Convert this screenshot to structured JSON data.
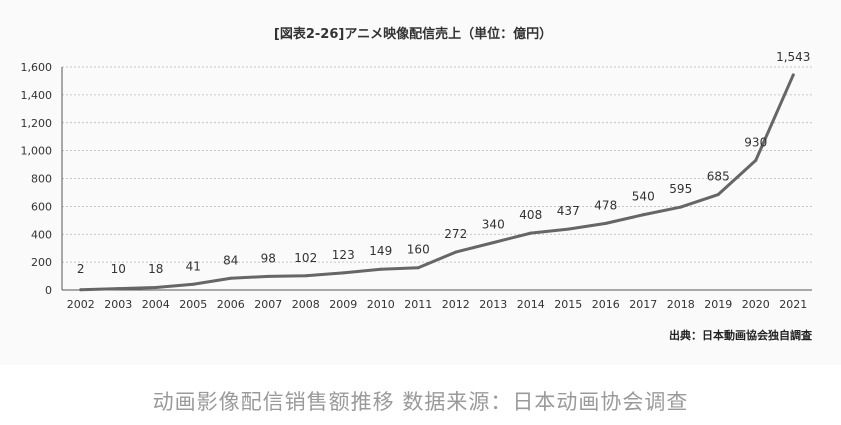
{
  "chart_data": {
    "type": "line",
    "title": "[図表2-26]アニメ映像配信売上（単位：億円）",
    "categories": [
      "2002",
      "2003",
      "2004",
      "2005",
      "2006",
      "2007",
      "2008",
      "2009",
      "2010",
      "2011",
      "2012",
      "2013",
      "2014",
      "2015",
      "2016",
      "2017",
      "2018",
      "2019",
      "2020",
      "2021"
    ],
    "values": [
      2,
      10,
      18,
      41,
      84,
      98,
      102,
      123,
      149,
      160,
      272,
      340,
      408,
      437,
      478,
      540,
      595,
      685,
      930,
      1543
    ],
    "data_labels": [
      "2",
      "10",
      "18",
      "41",
      "84",
      "98",
      "102",
      "123",
      "149",
      "160",
      "272",
      "340",
      "408",
      "437",
      "478",
      "540",
      "595",
      "685",
      "930",
      "1,543"
    ],
    "ylim": [
      0,
      1600
    ],
    "yticks": [
      0,
      200,
      400,
      600,
      800,
      1000,
      1200,
      1400,
      1600
    ],
    "ytick_labels": [
      "0",
      "200",
      "400",
      "600",
      "800",
      "1,000",
      "1,200",
      "1,400",
      "1,600"
    ],
    "grid": true,
    "line_color": "#666666",
    "source": "出典：日本動画協会独自調査"
  },
  "caption": "动画影像配信销售额推移 数据来源：日本动画协会调查"
}
